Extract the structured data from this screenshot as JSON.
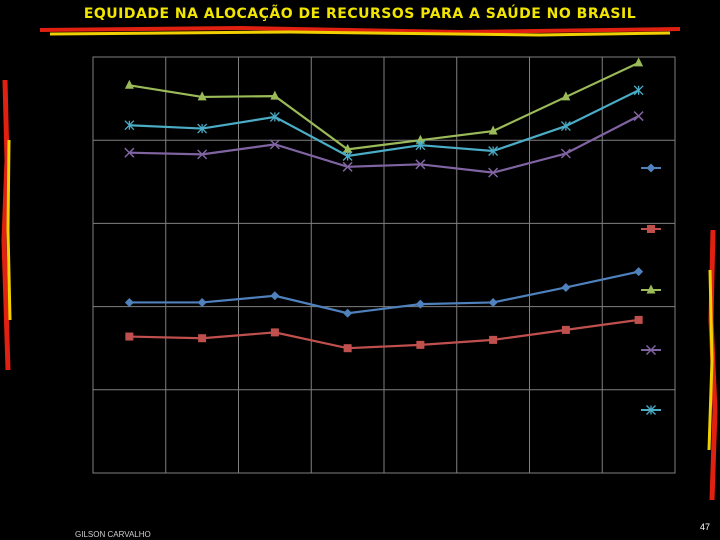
{
  "page": {
    "title": "EQUIDADE NA ALOCAÇÃO DE RECURSOS PARA A SAÚDE NO BRASIL",
    "author": "GILSON CARVALHO",
    "page_number": "47"
  },
  "colors": {
    "background": "#000000",
    "title": "#f2e600",
    "accent_red": "#e02010",
    "accent_yellow": "#f0d000",
    "grid": "#808080"
  },
  "chart_data": {
    "type": "line",
    "title": "",
    "xlabel": "",
    "ylabel": "",
    "grid": true,
    "legend_position": "right",
    "categories": [
      "",
      "",
      "",
      "",
      "",
      "",
      "",
      ""
    ],
    "ylim": [
      0,
      5
    ],
    "series": [
      {
        "marker": "diamond",
        "color": "#4f81bd",
        "values": [
          2.05,
          2.05,
          2.13,
          1.92,
          2.03,
          2.05,
          2.23,
          2.42
        ]
      },
      {
        "marker": "square",
        "color": "#c0504d",
        "values": [
          1.64,
          1.62,
          1.69,
          1.5,
          1.54,
          1.6,
          1.72,
          1.84
        ]
      },
      {
        "marker": "triangle",
        "color": "#9bbb59",
        "values": [
          4.66,
          4.52,
          4.53,
          3.89,
          4.0,
          4.11,
          4.52,
          4.93
        ]
      },
      {
        "marker": "x",
        "color": "#8064a2",
        "values": [
          3.85,
          3.83,
          3.95,
          3.68,
          3.71,
          3.61,
          3.84,
          4.29
        ]
      },
      {
        "marker": "star",
        "color": "#4bacc6",
        "values": [
          4.18,
          4.14,
          4.28,
          3.81,
          3.94,
          3.87,
          4.17,
          4.6
        ]
      }
    ]
  }
}
